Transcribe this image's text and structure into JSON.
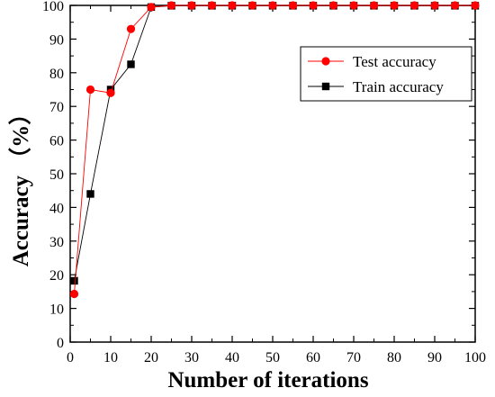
{
  "chart_data": {
    "type": "line",
    "title": "",
    "xlabel": "Number of iterations",
    "ylabel": "Accuracy （%）",
    "xlim": [
      0,
      100
    ],
    "ylim": [
      0,
      100
    ],
    "xticks": [
      0,
      10,
      20,
      30,
      40,
      50,
      60,
      70,
      80,
      90,
      100
    ],
    "yticks": [
      0,
      10,
      20,
      30,
      40,
      50,
      60,
      70,
      80,
      90,
      100
    ],
    "grid": false,
    "legend_position": "top-right",
    "x": [
      1,
      5,
      10,
      15,
      20,
      25,
      30,
      35,
      40,
      45,
      50,
      55,
      60,
      65,
      70,
      75,
      80,
      85,
      90,
      95,
      100
    ],
    "series": [
      {
        "name": "Test accuracy",
        "color": "#ff0000",
        "marker": "circle",
        "values": [
          14.3,
          75.0,
          74.0,
          93.0,
          99.5,
          100,
          100,
          100,
          100,
          100,
          100,
          100,
          100,
          100,
          100,
          100,
          100,
          100,
          100,
          100,
          100
        ]
      },
      {
        "name": "Train accuracy",
        "color": "#000000",
        "marker": "square",
        "values": [
          18.2,
          44.0,
          75.0,
          82.5,
          99.5,
          99.9,
          99.9,
          99.9,
          99.9,
          99.9,
          99.9,
          99.9,
          99.9,
          99.9,
          99.9,
          99.9,
          99.9,
          99.9,
          99.9,
          99.9,
          99.9
        ]
      }
    ]
  }
}
